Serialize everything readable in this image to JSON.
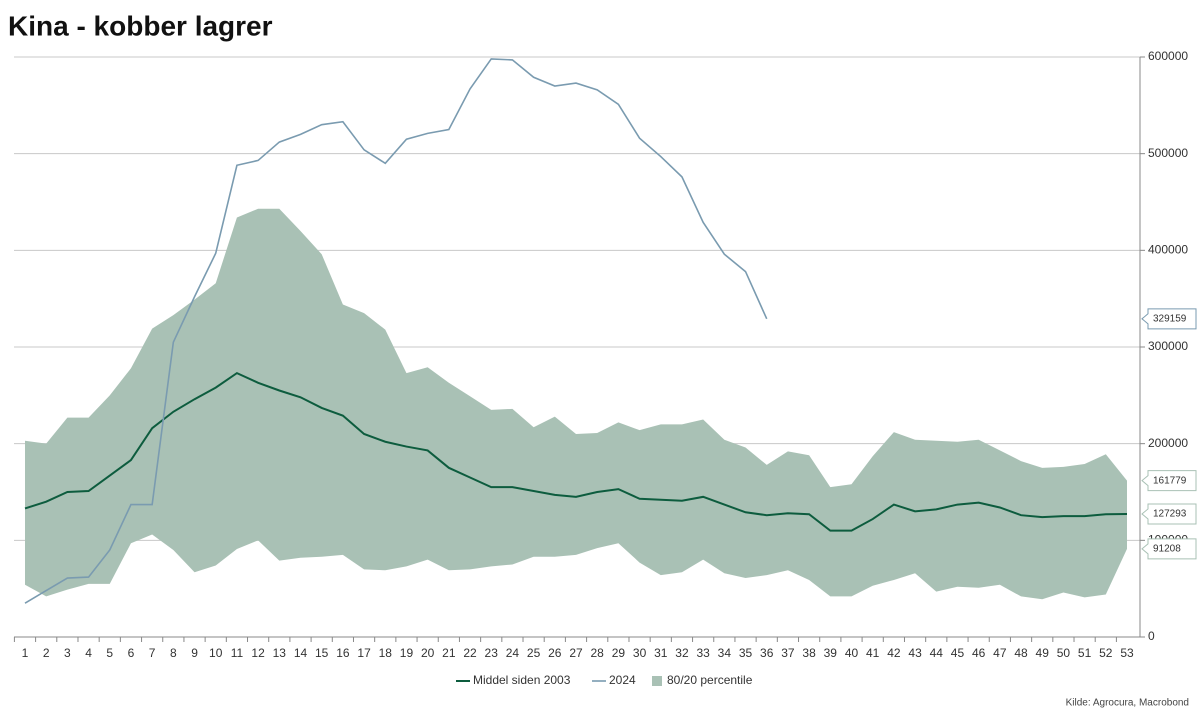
{
  "chart_data": {
    "type": "line",
    "title": "Kina - kobber lagrer",
    "source": "Kilde: Agrocura, Macrobond",
    "categories": [
      "1",
      "2",
      "3",
      "4",
      "5",
      "6",
      "7",
      "8",
      "9",
      "10",
      "11",
      "12",
      "13",
      "14",
      "15",
      "16",
      "17",
      "18",
      "19",
      "20",
      "21",
      "22",
      "23",
      "24",
      "25",
      "26",
      "27",
      "28",
      "29",
      "30",
      "31",
      "32",
      "33",
      "34",
      "35",
      "36",
      "37",
      "38",
      "39",
      "40",
      "41",
      "42",
      "43",
      "44",
      "45",
      "46",
      "47",
      "48",
      "49",
      "50",
      "51",
      "52",
      "53"
    ],
    "band": {
      "name": "80/20 percentile",
      "color": "#a9c1b5",
      "upper": [
        203000,
        200000,
        227000,
        227000,
        250000,
        278000,
        319000,
        333000,
        349000,
        366000,
        434000,
        443000,
        443000,
        420000,
        396000,
        344000,
        335000,
        318000,
        273000,
        279000,
        263000,
        249000,
        235000,
        236000,
        217000,
        228000,
        210000,
        211000,
        222000,
        214000,
        220000,
        220000,
        225000,
        204000,
        196000,
        178000,
        192000,
        188000,
        155000,
        158000,
        187000,
        212000,
        204000,
        203000,
        202000,
        204000,
        193000,
        182000,
        175000,
        176000,
        179000,
        189000,
        161779
      ],
      "lower": [
        54000,
        42000,
        49000,
        55000,
        55000,
        97000,
        106000,
        90000,
        67000,
        74000,
        91000,
        100000,
        79000,
        82000,
        83000,
        85000,
        70000,
        69000,
        73000,
        80000,
        69000,
        70000,
        73000,
        75000,
        83000,
        83000,
        85000,
        92000,
        97000,
        77000,
        64000,
        67000,
        80000,
        66000,
        61000,
        64000,
        69000,
        59000,
        42000,
        42000,
        53000,
        59000,
        66000,
        47000,
        52000,
        51000,
        54000,
        42000,
        39000,
        46000,
        41000,
        44000,
        91208
      ]
    },
    "series": [
      {
        "name": "Middel siden 2003",
        "color": "#0d5c3e",
        "values": [
          133000,
          140000,
          150000,
          151000,
          167000,
          183000,
          216000,
          233000,
          246000,
          258000,
          273000,
          263000,
          255000,
          248000,
          237000,
          229000,
          210000,
          202000,
          197000,
          193000,
          175000,
          165000,
          155000,
          155000,
          151000,
          147000,
          145000,
          150000,
          153000,
          143000,
          142000,
          141000,
          145000,
          137000,
          129000,
          126000,
          128000,
          127000,
          110000,
          110000,
          122000,
          137000,
          130000,
          132000,
          137000,
          139000,
          134000,
          126000,
          124000,
          125000,
          125000,
          127000,
          127293
        ]
      },
      {
        "name": "2024",
        "color": "#7a9bb0",
        "values": [
          35000,
          48000,
          61000,
          62000,
          90000,
          137000,
          137000,
          305000,
          352000,
          397000,
          488000,
          493000,
          512000,
          520000,
          530000,
          533000,
          504000,
          490000,
          515000,
          521000,
          525000,
          567000,
          598000,
          597000,
          579000,
          570000,
          573000,
          566000,
          551000,
          516000,
          497000,
          476000,
          429000,
          396000,
          378000,
          329159,
          null,
          null,
          null,
          null,
          null,
          null,
          null,
          null,
          null,
          null,
          null,
          null,
          null,
          null,
          null,
          null,
          null
        ]
      }
    ],
    "ylim": [
      0,
      600000
    ],
    "yticks": [
      0,
      100000,
      200000,
      300000,
      400000,
      500000,
      600000
    ],
    "grid": true
  }
}
